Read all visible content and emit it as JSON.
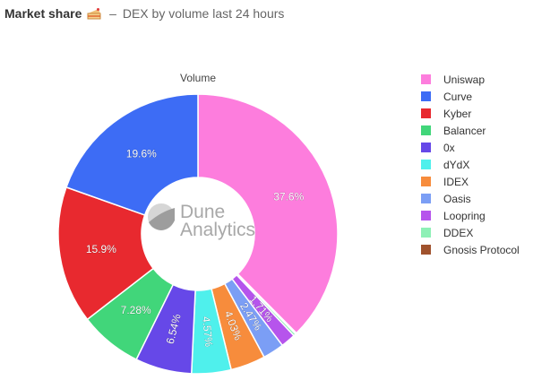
{
  "header": {
    "title": "Market share",
    "icon": "cake-icon",
    "separator": "–",
    "subtitle": "DEX by volume last 24 hours"
  },
  "watermark": {
    "line1": "Dune",
    "line2": "Analytics"
  },
  "chart_data": {
    "type": "pie",
    "donut": true,
    "title": "Volume",
    "legend_position": "right",
    "slices": [
      {
        "label": "Uniswap",
        "value": 37.6,
        "display": "37.6%",
        "color": "#fd7ddd"
      },
      {
        "label": "Gnosis Protocol",
        "value": 0.14,
        "display": "",
        "color": "#a0522d"
      },
      {
        "label": "DDEX",
        "value": 0.28,
        "display": "",
        "color": "#8ef0b6"
      },
      {
        "label": "Loopring",
        "value": 1.71,
        "display": "1.71%",
        "color": "#b654ec"
      },
      {
        "label": "Oasis",
        "value": 2.47,
        "display": "2.47%",
        "color": "#7b9ef5"
      },
      {
        "label": "IDEX",
        "value": 4.03,
        "display": "4.03%",
        "color": "#f78c3c"
      },
      {
        "label": "dYdX",
        "value": 4.57,
        "display": "4.57%",
        "color": "#4ff0ec"
      },
      {
        "label": "0x",
        "value": 6.54,
        "display": "6.54%",
        "color": "#6648e8"
      },
      {
        "label": "Balancer",
        "value": 7.28,
        "display": "7.28%",
        "color": "#41d67a"
      },
      {
        "label": "Kyber",
        "value": 15.9,
        "display": "15.9%",
        "color": "#e8292f"
      },
      {
        "label": "Curve",
        "value": 19.6,
        "display": "19.6%",
        "color": "#3d6cf5"
      }
    ],
    "legend": [
      "Uniswap",
      "Curve",
      "Kyber",
      "Balancer",
      "0x",
      "dYdX",
      "IDEX",
      "Oasis",
      "Loopring",
      "DDEX",
      "Gnosis Protocol"
    ]
  }
}
